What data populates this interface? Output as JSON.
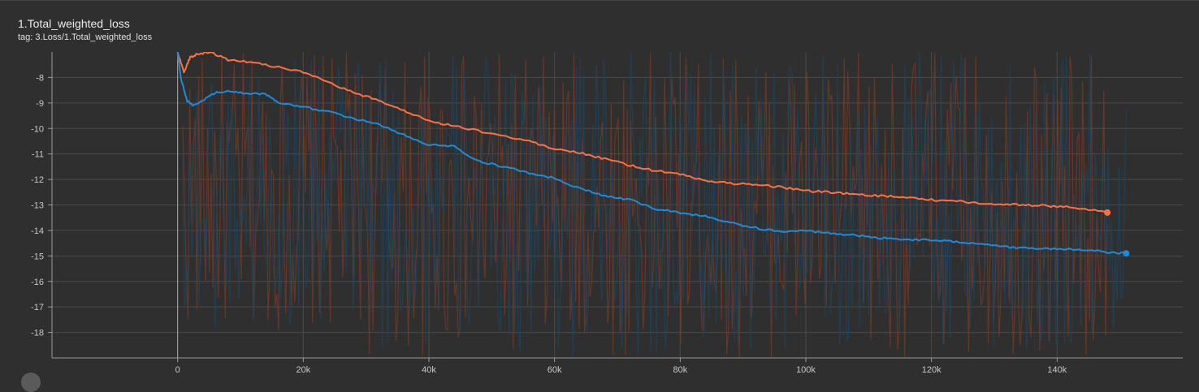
{
  "card": {
    "title": "1.Total_weighted_loss",
    "tag": "tag: 3.Loss/1.Total_weighted_loss"
  },
  "chart_data": {
    "type": "line",
    "title": "1.Total_weighted_loss",
    "xlim": [
      -20000,
      160000
    ],
    "ylim": [
      -19,
      -7
    ],
    "x_ticks": [
      0,
      20000,
      40000,
      60000,
      80000,
      100000,
      120000,
      140000
    ],
    "x_tick_labels": [
      "0",
      "20k",
      "40k",
      "60k",
      "80k",
      "100k",
      "120k",
      "140k"
    ],
    "y_ticks": [
      -8,
      -9,
      -10,
      -11,
      -12,
      -13,
      -14,
      -15,
      -16,
      -17,
      -18
    ],
    "y_tick_labels": [
      "-8",
      "-9",
      "-10",
      "-11",
      "-12",
      "-13",
      "-14",
      "-15",
      "-16",
      "-17",
      "-18"
    ],
    "grid": true,
    "series": [
      {
        "color": "#ff7043",
        "raw_color": "#7a3a26",
        "raw_range_early": [
          -18,
          -7
        ],
        "raw_range_late": [
          -19,
          -7
        ],
        "x": [
          0,
          1000,
          2000,
          3000,
          5000,
          8000,
          12000,
          16000,
          20000,
          24000,
          28000,
          32000,
          36000,
          40000,
          44000,
          50000,
          56000,
          60000,
          64000,
          68000,
          72000,
          76000,
          80000,
          84000,
          88000,
          92000,
          96000,
          100000,
          104000,
          108000,
          112000,
          116000,
          120000,
          124000,
          128000,
          132000,
          136000,
          140000,
          144000,
          148000
        ],
        "y": [
          -7.0,
          -7.8,
          -7.2,
          -7.1,
          -7.0,
          -7.3,
          -7.4,
          -7.6,
          -7.8,
          -8.2,
          -8.6,
          -8.9,
          -9.3,
          -9.7,
          -9.9,
          -10.2,
          -10.5,
          -10.8,
          -10.95,
          -11.2,
          -11.45,
          -11.65,
          -11.8,
          -12.05,
          -12.15,
          -12.2,
          -12.3,
          -12.45,
          -12.5,
          -12.6,
          -12.65,
          -12.7,
          -12.8,
          -12.85,
          -12.95,
          -12.97,
          -13.02,
          -13.05,
          -13.15,
          -13.3
        ]
      },
      {
        "color": "#1f8ad8",
        "raw_color": "#1e4560",
        "raw_range_early": [
          -18,
          -7
        ],
        "raw_range_late": [
          -19,
          -7
        ],
        "x": [
          0,
          500,
          1500,
          2500,
          4000,
          6000,
          8000,
          10000,
          14000,
          16000,
          20000,
          24000,
          28000,
          32000,
          36000,
          40000,
          44000,
          48000,
          52000,
          56000,
          60000,
          64000,
          68000,
          72000,
          76000,
          80000,
          84000,
          88000,
          92000,
          96000,
          100000,
          104000,
          108000,
          112000,
          116000,
          120000,
          124000,
          128000,
          132000,
          136000,
          140000,
          144000,
          148000,
          151000
        ],
        "y": [
          -7.0,
          -8.0,
          -8.9,
          -9.1,
          -8.9,
          -8.6,
          -8.55,
          -8.6,
          -8.65,
          -9.0,
          -9.15,
          -9.35,
          -9.6,
          -9.85,
          -10.25,
          -10.65,
          -10.7,
          -11.3,
          -11.5,
          -11.75,
          -11.95,
          -12.35,
          -12.65,
          -12.8,
          -13.15,
          -13.3,
          -13.45,
          -13.7,
          -13.9,
          -14.05,
          -14.02,
          -14.1,
          -14.2,
          -14.3,
          -14.35,
          -14.38,
          -14.45,
          -14.5,
          -14.65,
          -14.7,
          -14.72,
          -14.75,
          -14.85,
          -14.9
        ]
      }
    ]
  }
}
